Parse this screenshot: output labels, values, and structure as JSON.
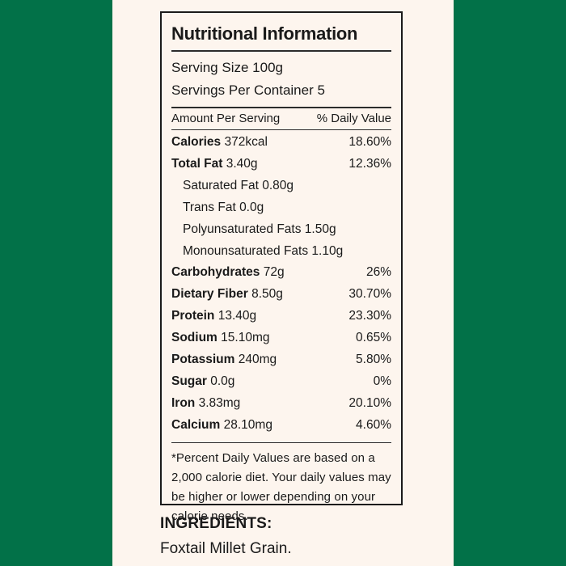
{
  "page": {
    "background_color": "#FDF5EE",
    "side_band_color": "#027148",
    "border_color": "#1b1b1b",
    "text_color": "#1a1a1a"
  },
  "label": {
    "title": "Nutritional Information",
    "serving_size": "Serving Size 100g",
    "servings_per_container": "Servings Per Container 5",
    "columns": {
      "left": "Amount Per Serving",
      "right": "% Daily Value"
    },
    "rows": [
      {
        "name": "Calories",
        "amount": "372kcal",
        "dv": "18.60%"
      },
      {
        "name": "Total Fat",
        "amount": "3.40g",
        "dv": "12.36%"
      },
      {
        "name": "Saturated Fat",
        "amount": "0.80g",
        "dv": ""
      },
      {
        "name": "Trans Fat",
        "amount": "0.0g",
        "dv": ""
      },
      {
        "name": "Polyunsaturated Fats",
        "amount": "1.50g",
        "dv": ""
      },
      {
        "name": "Monounsaturated Fats",
        "amount": "1.10g",
        "dv": ""
      },
      {
        "name": "Carbohydrates",
        "amount": "72g",
        "dv": "26%"
      },
      {
        "name": "Dietary Fiber",
        "amount": "8.50g",
        "dv": "30.70%"
      },
      {
        "name": "Protein",
        "amount": "13.40g",
        "dv": "23.30%"
      },
      {
        "name": "Sodium",
        "amount": "15.10mg",
        "dv": "0.65%"
      },
      {
        "name": "Potassium",
        "amount": "240mg",
        "dv": "5.80%"
      },
      {
        "name": "Sugar",
        "amount": "0.0g",
        "dv": "0%"
      },
      {
        "name": "Iron",
        "amount": "3.83mg",
        "dv": "20.10%"
      },
      {
        "name": "Calcium",
        "amount": "28.10mg",
        "dv": "4.60%"
      }
    ],
    "footnote": "*Percent Daily Values are based on a 2,000 calorie diet. Your daily values may be higher or lower depending on your calorie needs."
  },
  "ingredients": {
    "heading": "INGREDIENTS:",
    "text": "Foxtail Millet Grain."
  }
}
